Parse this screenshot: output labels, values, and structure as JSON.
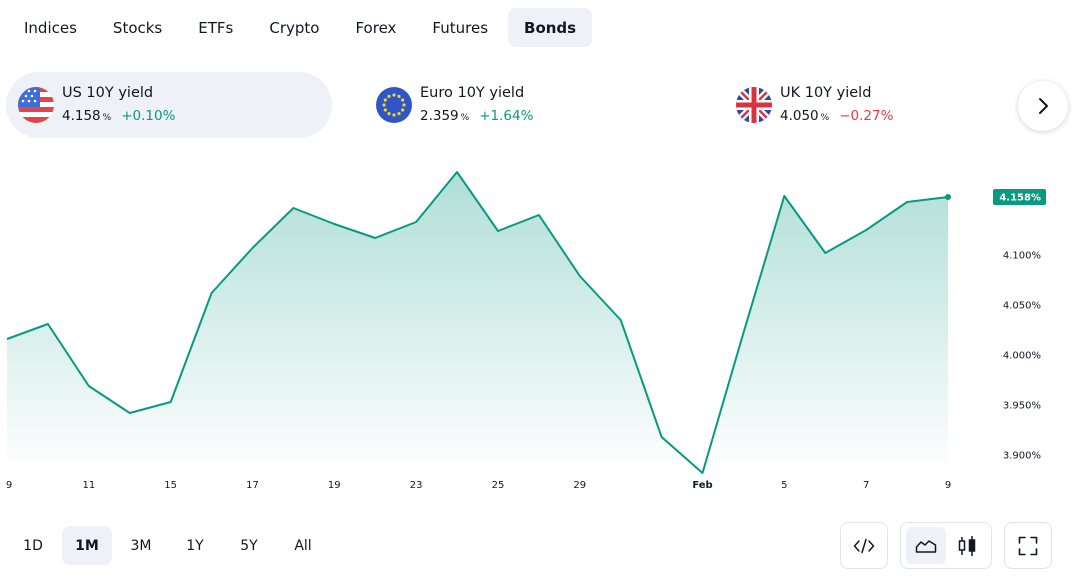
{
  "tabs": [
    "Indices",
    "Stocks",
    "ETFs",
    "Crypto",
    "Forex",
    "Futures",
    "Bonds"
  ],
  "active_tab": 6,
  "cards": [
    {
      "name": "US 10Y yield",
      "value": "4.158",
      "unit": "%",
      "change": "+0.10%",
      "direction": "up",
      "flag": "us-flag-icon"
    },
    {
      "name": "Euro 10Y yield",
      "value": "2.359",
      "unit": "%",
      "change": "+1.64%",
      "direction": "up",
      "flag": "eu-flag-icon"
    },
    {
      "name": "UK 10Y yield",
      "value": "4.050",
      "unit": "%",
      "change": "−0.27%",
      "direction": "down",
      "flag": "uk-flag-icon"
    }
  ],
  "ranges": [
    "1D",
    "1M",
    "3M",
    "1Y",
    "5Y",
    "All"
  ],
  "active_range": 1,
  "colors": {
    "accent": "#089981",
    "negative": "#f23645",
    "active_bg": "#eef1f7"
  },
  "tool_icons": [
    "embed-code-icon",
    "area-chart-icon",
    "candlestick-chart-icon",
    "fullscreen-icon"
  ],
  "chart_data": {
    "type": "area",
    "x_tick_labels": [
      "9",
      "11",
      "15",
      "17",
      "19",
      "23",
      "25",
      "29",
      "Feb",
      "5",
      "7",
      "9"
    ],
    "y_tick_labels": [
      "4.100%",
      "4.050%",
      "4.000%",
      "3.950%",
      "3.900%"
    ],
    "ylim": [
      3.875,
      4.195
    ],
    "last_value_label": "4.158%",
    "series": [
      {
        "values": [
          4.016,
          4.031,
          3.969,
          3.942,
          3.953,
          4.062,
          4.107,
          4.147,
          4.131,
          4.117,
          4.133,
          4.183,
          4.124,
          4.14,
          4.079,
          4.035,
          3.918,
          3.882,
          4.022,
          4.159,
          4.102,
          4.125,
          4.153,
          4.158
        ]
      }
    ],
    "x_tick_index": [
      0,
      2,
      4,
      6,
      8,
      10,
      12,
      14,
      17,
      19,
      21,
      23
    ]
  }
}
